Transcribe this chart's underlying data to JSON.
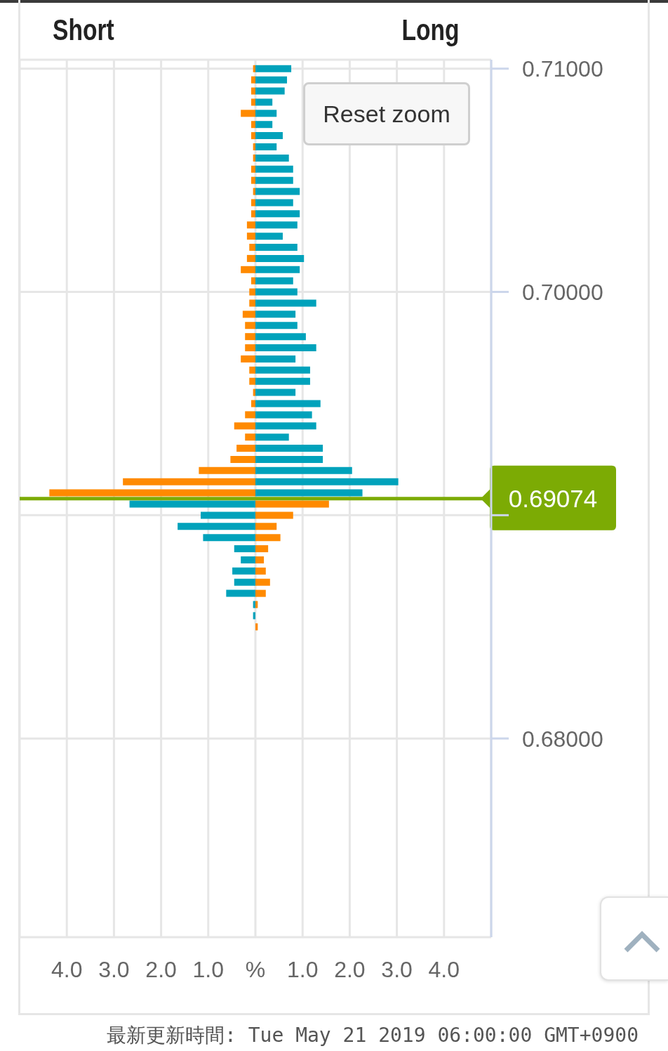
{
  "chart_data": {
    "type": "bar",
    "orientation": "horizontal",
    "stacked": true,
    "x": [
      0.71,
      0.7095,
      0.709,
      0.7085,
      0.708,
      0.7075,
      0.707,
      0.7065,
      0.706,
      0.7055,
      0.705,
      0.7045,
      0.704,
      0.7035,
      0.703,
      0.7025,
      0.702,
      0.7015,
      0.701,
      0.7005,
      0.7,
      0.6995,
      0.699,
      0.6985,
      0.698,
      0.6975,
      0.697,
      0.6965,
      0.696,
      0.6955,
      0.695,
      0.6945,
      0.694,
      0.6935,
      0.693,
      0.6925,
      0.692,
      0.6915,
      0.691,
      0.6905,
      0.69,
      0.6895,
      0.689,
      0.6885,
      0.688,
      0.6875,
      0.687,
      0.6865,
      0.686,
      0.6855,
      0.685
    ],
    "series": [
      {
        "color": "#ff8a00",
        "values": [
          -0.05,
          -0.09,
          -0.09,
          -0.09,
          -0.31,
          -0.09,
          -0.09,
          -0.05,
          -0.05,
          -0.09,
          -0.09,
          -0.05,
          -0.09,
          -0.09,
          -0.18,
          -0.18,
          -0.13,
          -0.18,
          -0.31,
          -0.09,
          -0.13,
          -0.13,
          -0.27,
          -0.22,
          -0.22,
          -0.22,
          -0.31,
          -0.13,
          -0.13,
          -0.05,
          -0.09,
          -0.22,
          -0.45,
          -0.22,
          -0.4,
          -0.53,
          -1.2,
          -2.81,
          -4.37,
          1.56,
          0.8,
          0.45,
          0.53,
          0.27,
          0.18,
          0.22,
          0.31,
          0.22,
          0.05,
          null,
          0.05
        ]
      },
      {
        "color": "#00a2bb",
        "values": [
          0.76,
          0.67,
          0.62,
          0.36,
          0.45,
          0.36,
          0.58,
          0.45,
          0.71,
          0.8,
          0.8,
          0.94,
          0.8,
          0.94,
          0.89,
          0.58,
          0.89,
          1.03,
          0.94,
          0.8,
          0.89,
          1.29,
          0.85,
          0.89,
          1.07,
          1.29,
          0.85,
          1.16,
          1.16,
          0.85,
          1.38,
          1.2,
          1.29,
          0.71,
          1.43,
          1.43,
          2.05,
          3.03,
          2.27,
          -2.67,
          -1.16,
          -1.65,
          -1.11,
          -0.45,
          -0.31,
          -0.49,
          -0.45,
          -0.62,
          -0.05,
          -0.05,
          null
        ]
      }
    ],
    "xlim": [
      -5,
      5
    ],
    "xticks": [
      {
        "value": -4,
        "label": "4.0"
      },
      {
        "value": -3,
        "label": "3.0"
      },
      {
        "value": -2,
        "label": "2.0"
      },
      {
        "value": -1,
        "label": "1.0"
      },
      {
        "value": 0,
        "label": "%"
      },
      {
        "value": 1,
        "label": "1.0"
      },
      {
        "value": 2,
        "label": "2.0"
      },
      {
        "value": 3,
        "label": "3.0"
      },
      {
        "value": 4,
        "label": "4.0"
      }
    ],
    "ylim": [
      0.6711,
      0.7104
    ],
    "yticks": [
      {
        "value": 0.68,
        "label": "0.68000"
      },
      {
        "value": 0.69,
        "label": null
      },
      {
        "value": 0.7,
        "label": "0.70000"
      },
      {
        "value": 0.71,
        "label": "0.71000"
      }
    ],
    "grid": true,
    "ref_lines": [
      {
        "axis": "y",
        "value": 0.69074,
        "label": "0.69074",
        "color": "#7cab04"
      }
    ],
    "annotations": [
      "Short",
      "Long",
      "Reset zoom",
      "最新更新時間: Tue May 21 2019 06:00:00 GMT+0900"
    ]
  }
}
